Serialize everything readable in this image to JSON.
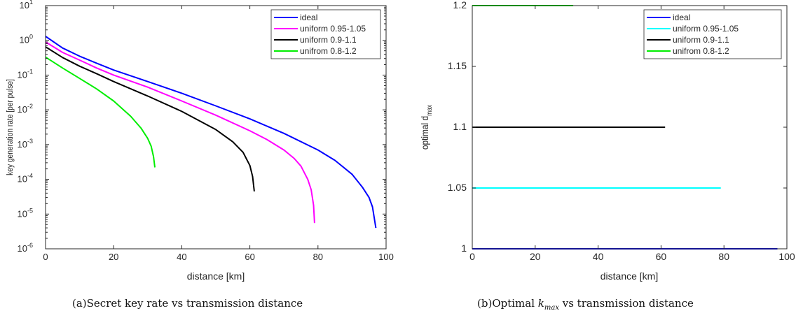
{
  "figure": {
    "caption_a_prefix": "(a)",
    "caption_a_text": "Secret key rate vs transmission distance",
    "caption_b_prefix": "(b)",
    "caption_b_text_pre": "Optimal ",
    "caption_b_math_main": "k",
    "caption_b_math_sub": "max",
    "caption_b_text_post": " vs transmission distance"
  },
  "chart_data": [
    {
      "type": "line",
      "xlabel": "distance [km]",
      "ylabel": "key generation rate [per pulse]",
      "yscale": "log",
      "xlim": [
        0,
        100
      ],
      "ylim": [
        1e-06,
        10
      ],
      "xticks": [
        0,
        20,
        40,
        60,
        80,
        100
      ],
      "yticks": [
        {
          "value": 1e-06,
          "base": "10",
          "exp": "-6"
        },
        {
          "value": 1e-05,
          "base": "10",
          "exp": "-5"
        },
        {
          "value": 0.0001,
          "base": "10",
          "exp": "-4"
        },
        {
          "value": 0.001,
          "base": "10",
          "exp": "-3"
        },
        {
          "value": 0.01,
          "base": "10",
          "exp": "-2"
        },
        {
          "value": 0.1,
          "base": "10",
          "exp": "-1"
        },
        {
          "value": 1,
          "base": "10",
          "exp": "0"
        },
        {
          "value": 10,
          "base": "10",
          "exp": "1"
        }
      ],
      "legend_position": "top-right",
      "series": [
        {
          "name": "ideal",
          "color": "#0000ff",
          "x": [
            0,
            5,
            10,
            15,
            20,
            30,
            40,
            50,
            60,
            70,
            80,
            85,
            90,
            93,
            95,
            96,
            96.5,
            97
          ],
          "y": [
            1.3,
            0.6,
            0.35,
            0.22,
            0.14,
            0.065,
            0.03,
            0.013,
            0.0055,
            0.0021,
            0.0007,
            0.00035,
            0.00014,
            6e-05,
            3e-05,
            1.6e-05,
            8e-06,
            4e-06
          ]
        },
        {
          "name": "uniform 0.95-1.05",
          "color": "#ff00ff",
          "x": [
            0,
            5,
            10,
            15,
            20,
            30,
            40,
            50,
            60,
            65,
            70,
            73,
            75,
            77,
            78,
            78.7,
            79
          ],
          "y": [
            0.9,
            0.45,
            0.27,
            0.16,
            0.1,
            0.045,
            0.018,
            0.007,
            0.0025,
            0.0014,
            0.0007,
            0.0004,
            0.00024,
            0.0001,
            5e-05,
            1.8e-05,
            5.5e-06
          ]
        },
        {
          "name": "uniform 0.9-1.1",
          "color": "#000000",
          "x": [
            0,
            5,
            10,
            15,
            20,
            30,
            40,
            50,
            55,
            58,
            60,
            60.8,
            61.3
          ],
          "y": [
            0.65,
            0.32,
            0.18,
            0.11,
            0.065,
            0.025,
            0.009,
            0.0027,
            0.0012,
            0.0006,
            0.00025,
            0.00012,
            4.5e-05
          ]
        },
        {
          "name": "unifrom 0.8-1.2",
          "color": "#00ee00",
          "x": [
            0,
            5,
            10,
            15,
            20,
            25,
            28,
            30,
            31,
            31.7,
            32.1
          ],
          "y": [
            0.33,
            0.16,
            0.08,
            0.04,
            0.018,
            0.0065,
            0.003,
            0.0015,
            0.0009,
            0.00045,
            0.00022
          ]
        }
      ]
    },
    {
      "type": "line",
      "xlabel": "distance [km]",
      "ylabel_main": "optimal d",
      "ylabel_sub": "max",
      "xlim": [
        0,
        100
      ],
      "ylim": [
        1,
        1.2
      ],
      "xticks": [
        0,
        20,
        40,
        60,
        80,
        100
      ],
      "yticks": [
        1,
        1.05,
        1.1,
        1.15,
        1.2
      ],
      "legend_position": "top-right",
      "series": [
        {
          "name": "ideal",
          "color": "#0000ff",
          "x": [
            0,
            97
          ],
          "y": [
            1.0,
            1.0
          ]
        },
        {
          "name": "uniform 0.95-1.05",
          "color": "#00ffff",
          "x": [
            0,
            79
          ],
          "y": [
            1.05,
            1.05
          ]
        },
        {
          "name": "uniform 0.9-1.1",
          "color": "#000000",
          "x": [
            0,
            61.3
          ],
          "y": [
            1.1,
            1.1
          ]
        },
        {
          "name": "unifrom 0.8-1.2",
          "color": "#00ee00",
          "x": [
            0,
            32.1
          ],
          "y": [
            1.2,
            1.2
          ]
        }
      ]
    }
  ]
}
